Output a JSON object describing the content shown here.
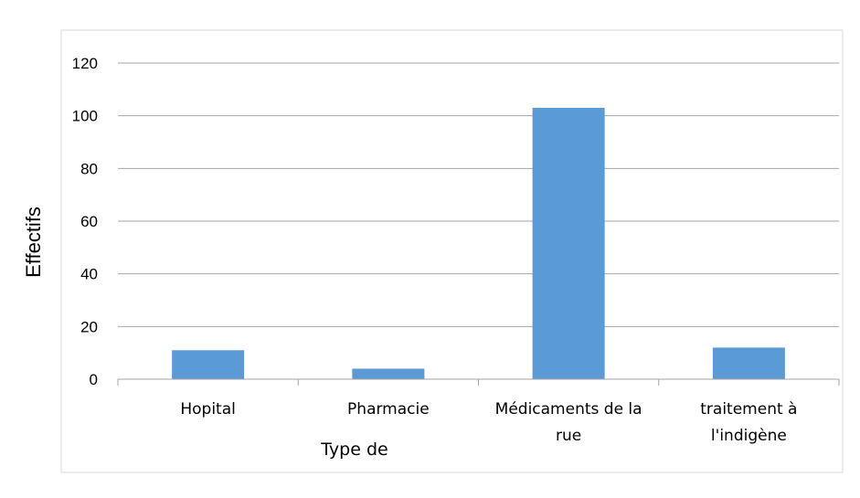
{
  "chart_data": {
    "type": "bar",
    "categories": [
      "Hopital",
      "Pharmacie",
      "Médicaments de la rue",
      "traitement à l'indigène"
    ],
    "category_lines": [
      [
        "Hopital"
      ],
      [
        "Pharmacie"
      ],
      [
        "Médicaments de la",
        "rue"
      ],
      [
        "traitement à",
        "l'indigène"
      ]
    ],
    "values": [
      11,
      4,
      103,
      12
    ],
    "xlabel": "Type de",
    "ylabel": "Effectifs",
    "ylim": [
      0,
      120
    ],
    "yticks": [
      0,
      20,
      40,
      60,
      80,
      100,
      120
    ],
    "grid": true,
    "legend": "none",
    "colors": {
      "bar": "#5b9bd5",
      "grid": "#a6a6a6",
      "axis": "#a6a6a6",
      "border": "#d9d9d9"
    }
  }
}
